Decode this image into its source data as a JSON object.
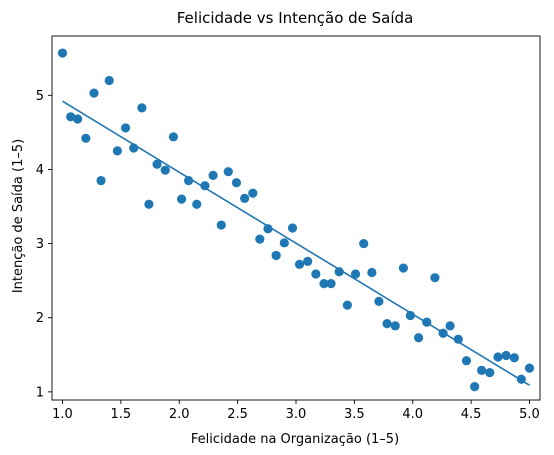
{
  "chart_data": {
    "type": "scatter",
    "title": "Felicidade vs Intenção de Saída",
    "xlabel": "Felicidade na Organização (1–5)",
    "ylabel": "Intenção de Saída (1–5)",
    "xlim": [
      0.91,
      5.09
    ],
    "ylim": [
      0.89,
      5.8
    ],
    "xticks": [
      1.0,
      1.5,
      2.0,
      2.5,
      3.0,
      3.5,
      4.0,
      4.5,
      5.0
    ],
    "xtick_labels": [
      "1.0",
      "1.5",
      "2.0",
      "2.5",
      "3.0",
      "3.5",
      "4.0",
      "4.5",
      "5.0"
    ],
    "yticks": [
      1,
      2,
      3,
      4,
      5
    ],
    "ytick_labels": [
      "1",
      "2",
      "3",
      "4",
      "5"
    ],
    "grid": false,
    "colors": {
      "series": "#1f77b4"
    },
    "points": [
      [
        1.0,
        5.57
      ],
      [
        1.07,
        4.71
      ],
      [
        1.13,
        4.68
      ],
      [
        1.2,
        4.42
      ],
      [
        1.27,
        5.03
      ],
      [
        1.33,
        3.85
      ],
      [
        1.4,
        5.2
      ],
      [
        1.47,
        4.25
      ],
      [
        1.54,
        4.56
      ],
      [
        1.61,
        4.29
      ],
      [
        1.68,
        4.83
      ],
      [
        1.74,
        3.53
      ],
      [
        1.81,
        4.07
      ],
      [
        1.88,
        3.99
      ],
      [
        1.95,
        4.44
      ],
      [
        2.02,
        3.6
      ],
      [
        2.08,
        3.85
      ],
      [
        2.15,
        3.53
      ],
      [
        2.22,
        3.78
      ],
      [
        2.29,
        3.92
      ],
      [
        2.36,
        3.25
      ],
      [
        2.42,
        3.97
      ],
      [
        2.49,
        3.82
      ],
      [
        2.56,
        3.61
      ],
      [
        2.63,
        3.68
      ],
      [
        2.69,
        3.06
      ],
      [
        2.76,
        3.2
      ],
      [
        2.83,
        2.84
      ],
      [
        2.9,
        3.01
      ],
      [
        2.97,
        3.21
      ],
      [
        3.03,
        2.72
      ],
      [
        3.1,
        2.76
      ],
      [
        3.17,
        2.59
      ],
      [
        3.24,
        2.46
      ],
      [
        3.3,
        2.46
      ],
      [
        3.37,
        2.62
      ],
      [
        3.44,
        2.17
      ],
      [
        3.51,
        2.59
      ],
      [
        3.58,
        3.0
      ],
      [
        3.65,
        2.61
      ],
      [
        3.71,
        2.22
      ],
      [
        3.78,
        1.92
      ],
      [
        3.85,
        1.89
      ],
      [
        3.92,
        2.67
      ],
      [
        3.98,
        2.03
      ],
      [
        4.05,
        1.73
      ],
      [
        4.12,
        1.94
      ],
      [
        4.19,
        2.54
      ],
      [
        4.26,
        1.79
      ],
      [
        4.32,
        1.89
      ],
      [
        4.39,
        1.71
      ],
      [
        4.46,
        1.42
      ],
      [
        4.53,
        1.07
      ],
      [
        4.59,
        1.29
      ],
      [
        4.66,
        1.26
      ],
      [
        4.73,
        1.47
      ],
      [
        4.8,
        1.49
      ],
      [
        4.87,
        1.46
      ],
      [
        4.93,
        1.17
      ],
      [
        5.0,
        1.32
      ]
    ],
    "fit_line": {
      "x": [
        1.0,
        5.0
      ],
      "y": [
        4.92,
        1.09
      ]
    }
  }
}
